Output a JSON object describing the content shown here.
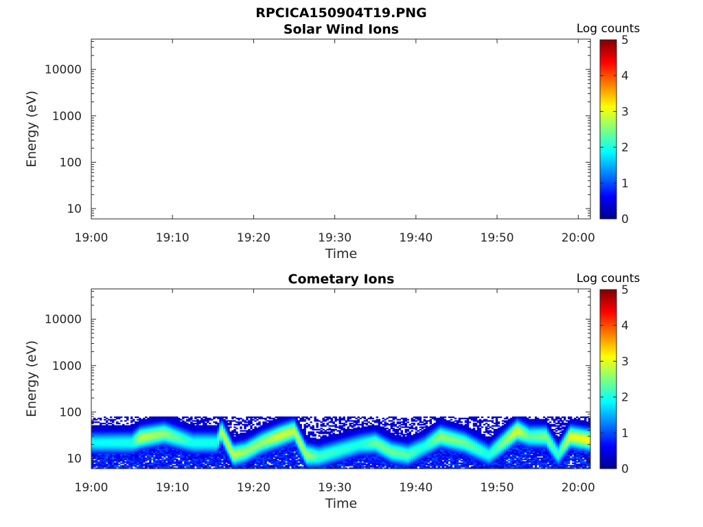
{
  "figure": {
    "title": "RPCICA150904T19.PNG"
  },
  "colors": {
    "jet": [
      "#00008f",
      "#0000ff",
      "#0080ff",
      "#00ffff",
      "#80ff80",
      "#ffff00",
      "#ff8000",
      "#ff0000",
      "#800000"
    ],
    "axis": "#262626"
  },
  "chart_data": [
    {
      "type": "heatmap",
      "title": "Solar Wind Ions",
      "xlabel": "Time",
      "ylabel": "Energy (eV)",
      "x_ticks": [
        "19:00",
        "19:10",
        "19:20",
        "19:30",
        "19:40",
        "19:50",
        "20:00"
      ],
      "x_tick_values_min": [
        0,
        10,
        20,
        30,
        40,
        50,
        60
      ],
      "xlim_min": [
        0,
        61.5
      ],
      "y_scale": "log",
      "y_ticks": [
        "10",
        "100",
        "1000",
        "10000"
      ],
      "y_tick_values": [
        10,
        100,
        1000,
        10000
      ],
      "ylim": [
        6,
        45000
      ],
      "colorbar": {
        "label": "Log counts",
        "range": [
          0,
          5
        ],
        "ticks": [
          "0",
          "1",
          "2",
          "3",
          "4",
          "5"
        ]
      },
      "data_present": false,
      "band_profile": []
    },
    {
      "type": "heatmap",
      "title": "Cometary Ions",
      "xlabel": "Time",
      "ylabel": "Energy (eV)",
      "x_ticks": [
        "19:00",
        "19:10",
        "19:20",
        "19:30",
        "19:40",
        "19:50",
        "20:00"
      ],
      "x_tick_values_min": [
        0,
        10,
        20,
        30,
        40,
        50,
        60
      ],
      "xlim_min": [
        0,
        61.5
      ],
      "y_scale": "log",
      "y_ticks": [
        "10",
        "100",
        "1000",
        "10000"
      ],
      "y_tick_values": [
        10,
        100,
        1000,
        10000
      ],
      "ylim": [
        6,
        45000
      ],
      "colorbar": {
        "label": "Log counts",
        "range": [
          0,
          5
        ],
        "ticks": [
          "0",
          "1",
          "2",
          "3",
          "4",
          "5"
        ]
      },
      "data_present": true,
      "noise_energy_range_eV": [
        6,
        80
      ],
      "band_profile": [
        {
          "t_min": 0.0,
          "peak_eV": 22,
          "peak_log_counts": 1.9
        },
        {
          "t_min": 5.0,
          "peak_eV": 22,
          "peak_log_counts": 2.0
        },
        {
          "t_min": 6.0,
          "peak_eV": 28,
          "peak_log_counts": 2.8
        },
        {
          "t_min": 9.0,
          "peak_eV": 35,
          "peak_log_counts": 2.6
        },
        {
          "t_min": 12.5,
          "peak_eV": 22,
          "peak_log_counts": 2.0
        },
        {
          "t_min": 15.5,
          "peak_eV": 22,
          "peak_log_counts": 2.0
        },
        {
          "t_min": 16.0,
          "peak_eV": 40,
          "peak_log_counts": 2.8
        },
        {
          "t_min": 17.5,
          "peak_eV": 12,
          "peak_log_counts": 2.8
        },
        {
          "t_min": 19.0,
          "peak_eV": 14,
          "peak_log_counts": 2.6
        },
        {
          "t_min": 21.0,
          "peak_eV": 22,
          "peak_log_counts": 2.6
        },
        {
          "t_min": 23.0,
          "peak_eV": 30,
          "peak_log_counts": 2.9
        },
        {
          "t_min": 25.0,
          "peak_eV": 40,
          "peak_log_counts": 2.8
        },
        {
          "t_min": 26.5,
          "peak_eV": 12,
          "peak_log_counts": 2.7
        },
        {
          "t_min": 28.0,
          "peak_eV": 11,
          "peak_log_counts": 2.2
        },
        {
          "t_min": 33.0,
          "peak_eV": 20,
          "peak_log_counts": 2.0
        },
        {
          "t_min": 35.0,
          "peak_eV": 22,
          "peak_log_counts": 2.4
        },
        {
          "t_min": 37.0,
          "peak_eV": 14,
          "peak_log_counts": 2.4
        },
        {
          "t_min": 39.0,
          "peak_eV": 12,
          "peak_log_counts": 2.3
        },
        {
          "t_min": 41.0,
          "peak_eV": 18,
          "peak_log_counts": 2.0
        },
        {
          "t_min": 43.0,
          "peak_eV": 30,
          "peak_log_counts": 2.6
        },
        {
          "t_min": 46.0,
          "peak_eV": 22,
          "peak_log_counts": 2.4
        },
        {
          "t_min": 49.0,
          "peak_eV": 12,
          "peak_log_counts": 2.0
        },
        {
          "t_min": 52.5,
          "peak_eV": 40,
          "peak_log_counts": 3.0
        },
        {
          "t_min": 54.0,
          "peak_eV": 30,
          "peak_log_counts": 2.3
        },
        {
          "t_min": 56.0,
          "peak_eV": 30,
          "peak_log_counts": 2.5
        },
        {
          "t_min": 57.5,
          "peak_eV": 12,
          "peak_log_counts": 2.1
        },
        {
          "t_min": 59.0,
          "peak_eV": 30,
          "peak_log_counts": 3.0
        },
        {
          "t_min": 61.5,
          "peak_eV": 25,
          "peak_log_counts": 3.1
        }
      ]
    }
  ]
}
